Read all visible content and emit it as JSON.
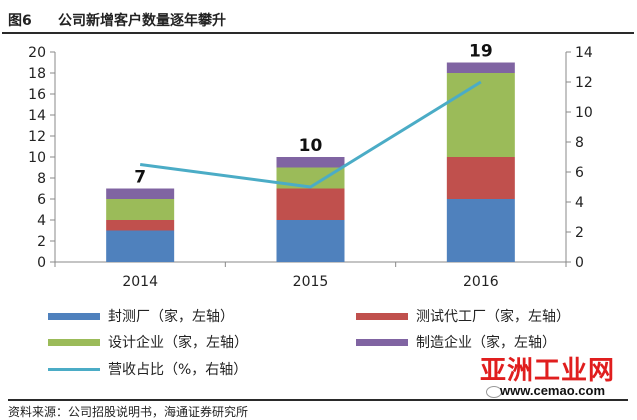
{
  "header": {
    "fig_no": "图6",
    "title": "公司新增客户数量逐年攀升"
  },
  "chart_data": {
    "type": "bar",
    "stacked": true,
    "categories": [
      "2014",
      "2015",
      "2016"
    ],
    "series": [
      {
        "name": "封测厂（家，左轴）",
        "color": "#4f81bd",
        "values": [
          3,
          4,
          6
        ]
      },
      {
        "name": "测试代工厂（家，左轴）",
        "color": "#c0504d",
        "values": [
          1,
          3,
          4
        ]
      },
      {
        "name": "设计企业（家，左轴）",
        "color": "#9bbb59",
        "values": [
          2,
          2,
          8
        ]
      },
      {
        "name": "制造企业（家，左轴）",
        "color": "#8064a2",
        "values": [
          1,
          1,
          1
        ]
      }
    ],
    "totals": [
      7,
      10,
      19
    ],
    "line_series": {
      "name": "营收占比（%，右轴）",
      "color": "#4bacc6",
      "values": [
        6.5,
        5,
        12
      ]
    },
    "left_axis": {
      "min": 0,
      "max": 20,
      "step": 2,
      "ticks": [
        "0",
        "2",
        "4",
        "6",
        "8",
        "10",
        "12",
        "14",
        "16",
        "18",
        "20"
      ]
    },
    "right_axis": {
      "min": 0,
      "max": 14,
      "step": 2,
      "ticks": [
        "0",
        "2",
        "4",
        "6",
        "8",
        "10",
        "12",
        "14"
      ]
    },
    "legend_position": "bottom",
    "grid": false
  },
  "source": "资料来源：公司招股说明书，海通证券研究所",
  "watermark": {
    "brand": "亚洲工业网",
    "url": "www.cemao.com"
  }
}
